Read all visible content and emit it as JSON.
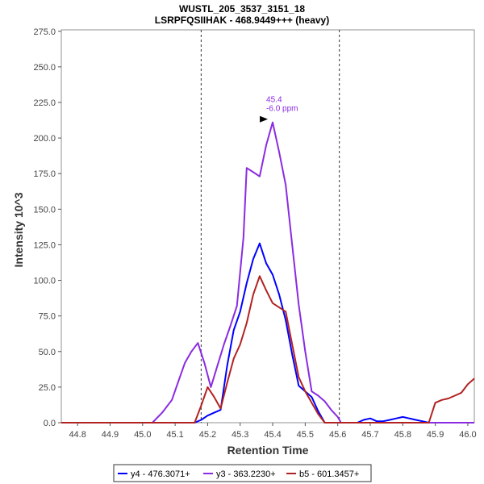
{
  "chart_data": {
    "type": "line",
    "title": "WUSTL_205_3537_3151_18",
    "subtitle": "LSRPFQSIIHAK - 468.9449+++ (heavy)",
    "xlabel": "Retention Time",
    "ylabel": "Intensity 10^3",
    "xlim": [
      44.75,
      46.02
    ],
    "ylim": [
      0,
      276
    ],
    "xticks": [
      44.8,
      44.9,
      45.0,
      45.1,
      45.2,
      45.3,
      45.4,
      45.5,
      45.6,
      45.7,
      45.8,
      45.9,
      46.0
    ],
    "yticks": [
      0,
      25,
      50,
      75,
      100,
      125,
      150,
      175,
      200,
      225,
      250,
      275
    ],
    "xtick_labels": [
      "44.8",
      "44.9",
      "45.0",
      "45.1",
      "45.2",
      "45.3",
      "45.4",
      "45.5",
      "45.6",
      "45.7",
      "45.8",
      "45.9",
      "46.0"
    ],
    "ytick_labels": [
      "0.0",
      "25.0",
      "50.0",
      "75.0",
      "100.0",
      "125.0",
      "150.0",
      "175.0",
      "200.0",
      "225.0",
      "250.0",
      "275.0"
    ],
    "vlines": [
      45.18,
      45.605
    ],
    "grid": false,
    "legend_position": "bottom",
    "annotation": {
      "x": 45.4,
      "y": 211,
      "line1": "45.4",
      "line2": "-6.0 ppm",
      "color": "#8a2be2"
    },
    "series": [
      {
        "name": "y4 - 476.3071+",
        "color": "#0000ff",
        "points": [
          [
            44.75,
            0
          ],
          [
            45.16,
            0
          ],
          [
            45.18,
            2
          ],
          [
            45.2,
            5
          ],
          [
            45.22,
            7
          ],
          [
            45.24,
            9
          ],
          [
            45.26,
            40
          ],
          [
            45.28,
            65
          ],
          [
            45.3,
            78
          ],
          [
            45.32,
            98
          ],
          [
            45.34,
            115
          ],
          [
            45.36,
            126
          ],
          [
            45.38,
            112
          ],
          [
            45.4,
            104
          ],
          [
            45.42,
            90
          ],
          [
            45.44,
            72
          ],
          [
            45.46,
            48
          ],
          [
            45.48,
            26
          ],
          [
            45.5,
            22
          ],
          [
            45.52,
            18
          ],
          [
            45.54,
            8
          ],
          [
            45.56,
            0
          ],
          [
            45.66,
            0
          ],
          [
            45.68,
            2
          ],
          [
            45.7,
            3
          ],
          [
            45.72,
            1
          ],
          [
            45.74,
            1
          ],
          [
            45.76,
            2
          ],
          [
            45.78,
            3
          ],
          [
            45.8,
            4
          ],
          [
            45.82,
            3
          ],
          [
            45.84,
            2
          ],
          [
            45.86,
            1
          ],
          [
            45.88,
            0
          ],
          [
            46.02,
            0
          ]
        ]
      },
      {
        "name": "y3 - 363.2230+",
        "color": "#8a2be2",
        "points": [
          [
            44.75,
            0
          ],
          [
            45.03,
            0
          ],
          [
            45.06,
            7
          ],
          [
            45.09,
            16
          ],
          [
            45.11,
            29
          ],
          [
            45.13,
            42
          ],
          [
            45.15,
            50
          ],
          [
            45.17,
            56
          ],
          [
            45.19,
            42
          ],
          [
            45.21,
            25
          ],
          [
            45.23,
            40
          ],
          [
            45.25,
            55
          ],
          [
            45.27,
            68
          ],
          [
            45.29,
            82
          ],
          [
            45.31,
            130
          ],
          [
            45.32,
            179
          ],
          [
            45.34,
            176
          ],
          [
            45.36,
            173
          ],
          [
            45.38,
            195
          ],
          [
            45.4,
            211
          ],
          [
            45.42,
            190
          ],
          [
            45.44,
            167
          ],
          [
            45.46,
            125
          ],
          [
            45.48,
            83
          ],
          [
            45.5,
            50
          ],
          [
            45.52,
            22
          ],
          [
            45.54,
            19
          ],
          [
            45.56,
            15
          ],
          [
            45.58,
            9
          ],
          [
            45.6,
            4
          ],
          [
            45.61,
            0
          ],
          [
            46.02,
            0
          ]
        ]
      },
      {
        "name": "b5 - 601.3457+",
        "color": "#b22222",
        "points": [
          [
            44.75,
            0
          ],
          [
            45.16,
            0
          ],
          [
            45.18,
            12
          ],
          [
            45.2,
            25
          ],
          [
            45.22,
            18
          ],
          [
            45.24,
            10
          ],
          [
            45.26,
            28
          ],
          [
            45.28,
            45
          ],
          [
            45.3,
            55
          ],
          [
            45.32,
            70
          ],
          [
            45.34,
            90
          ],
          [
            45.36,
            103
          ],
          [
            45.38,
            93
          ],
          [
            45.4,
            84
          ],
          [
            45.42,
            81
          ],
          [
            45.44,
            78
          ],
          [
            45.46,
            55
          ],
          [
            45.48,
            32
          ],
          [
            45.5,
            22
          ],
          [
            45.52,
            14
          ],
          [
            45.54,
            6
          ],
          [
            45.56,
            0
          ],
          [
            45.88,
            0
          ],
          [
            45.9,
            14
          ],
          [
            45.92,
            16
          ],
          [
            45.94,
            17
          ],
          [
            45.96,
            19
          ],
          [
            45.98,
            21
          ],
          [
            46.0,
            27
          ],
          [
            46.02,
            31
          ]
        ]
      }
    ]
  }
}
